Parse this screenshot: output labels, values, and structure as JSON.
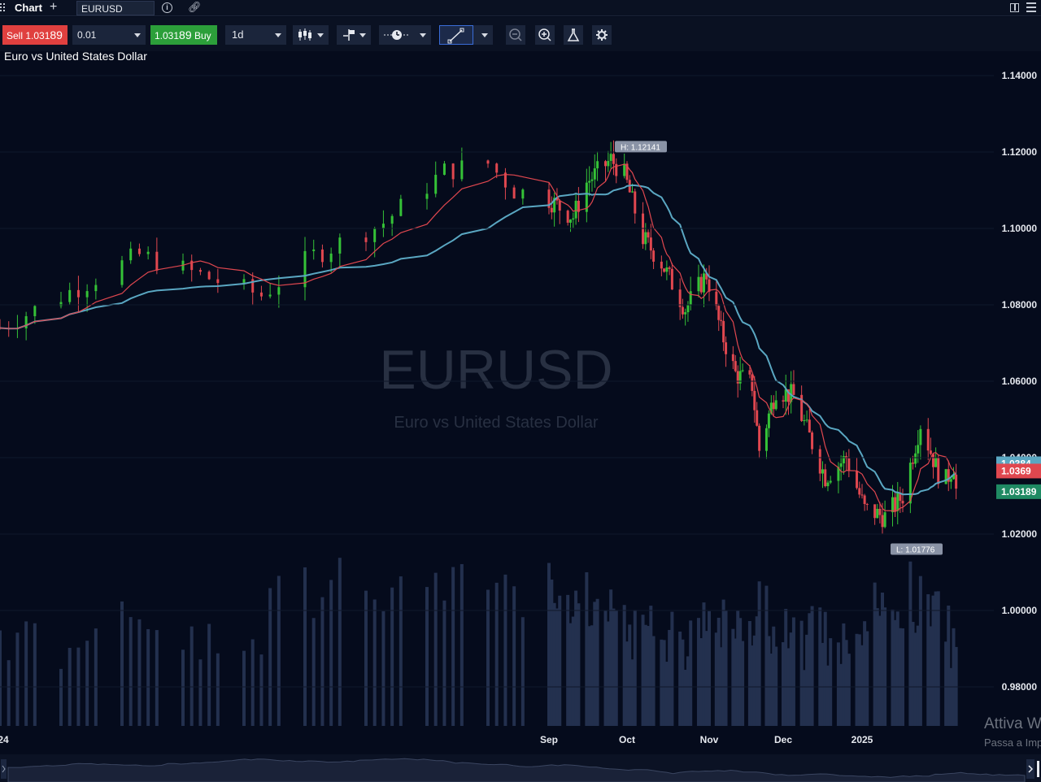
{
  "topbar": {
    "tab_title": "Chart",
    "symbol": "EURUSD"
  },
  "toolbar": {
    "sell_label": "Sell",
    "sell_price_main": "1.031",
    "sell_price_big": "89",
    "quantity": "0.01",
    "buy_price_main": "1.031",
    "buy_price_big": "89",
    "buy_label": "Buy",
    "timeframe": "1d"
  },
  "watermark": {
    "symbol": "EURUSD",
    "name": "Euro vs United States Dollar"
  },
  "windows_notice": {
    "line1": "Attiva W",
    "line2": "Passa a Imp"
  },
  "colors": {
    "background": "#050b1c",
    "bull": "#35c237",
    "bear": "#e0474f",
    "ma_fast": "#e0474f",
    "ma_slow": "#5aa7c2",
    "volume": "#23304e",
    "price_tag": "#1f8a63"
  },
  "chart_data": {
    "type": "candlestick",
    "title": "Euro vs United States Dollar",
    "symbol": "EURUSD",
    "timeframe": "1d",
    "ylim": [
      0.97,
      1.1496
    ],
    "y_ticks": [
      "1.14000",
      "1.12000",
      "1.10000",
      "1.08000",
      "1.06000",
      "1.04000",
      "1.02000",
      "1.00000",
      "0.98000"
    ],
    "x_ticks": [
      "24",
      "Sep",
      "Oct",
      "Nov",
      "Dec",
      "2025"
    ],
    "annotations": {
      "high_label": "H: 1.12141",
      "low_label": "L: 1.01776",
      "ma_slow_label": "1.0384",
      "ma_fast_label": "1.0369",
      "last_label": "1.03189"
    },
    "high": 1.12141,
    "low": 1.01776,
    "ma_slow_last": 1.0384,
    "ma_fast_last": 1.0369,
    "last_price": 1.03189,
    "close_path": [
      [
        "2024-07-01",
        1.074
      ],
      [
        "2024-07-17",
        1.093
      ],
      [
        "2024-07-31",
        1.0825
      ],
      [
        "2024-08-06",
        1.093
      ],
      [
        "2024-08-14",
        1.1015
      ],
      [
        "2024-08-21",
        1.115
      ],
      [
        "2024-08-26",
        1.117
      ],
      [
        "2024-08-29",
        1.11
      ],
      [
        "2024-09-05",
        1.106
      ],
      [
        "2024-09-11",
        1.103
      ],
      [
        "2024-09-16",
        1.112
      ],
      [
        "2024-09-25",
        1.118
      ],
      [
        "2024-09-30",
        1.114
      ],
      [
        "2024-10-07",
        1.0975
      ],
      [
        "2024-10-14",
        1.091
      ],
      [
        "2024-10-23",
        1.079
      ],
      [
        "2024-10-31",
        1.088
      ],
      [
        "2024-11-06",
        1.073
      ],
      [
        "2024-11-12",
        1.062
      ],
      [
        "2024-11-19",
        1.059
      ],
      [
        "2024-11-22",
        1.042
      ],
      [
        "2024-11-29",
        1.058
      ],
      [
        "2024-12-06",
        1.056
      ],
      [
        "2024-12-18",
        1.035
      ],
      [
        "2024-12-26",
        1.04
      ],
      [
        "2025-01-02",
        1.0265
      ],
      [
        "2025-01-10",
        1.0245
      ],
      [
        "2025-01-17",
        1.03
      ],
      [
        "2025-01-24",
        1.049
      ],
      [
        "2025-01-31",
        1.036
      ],
      [
        "2025-02-03",
        1.034
      ],
      [
        "2025-02-06",
        1.038
      ],
      [
        "2025-02-07",
        1.0319
      ]
    ]
  }
}
